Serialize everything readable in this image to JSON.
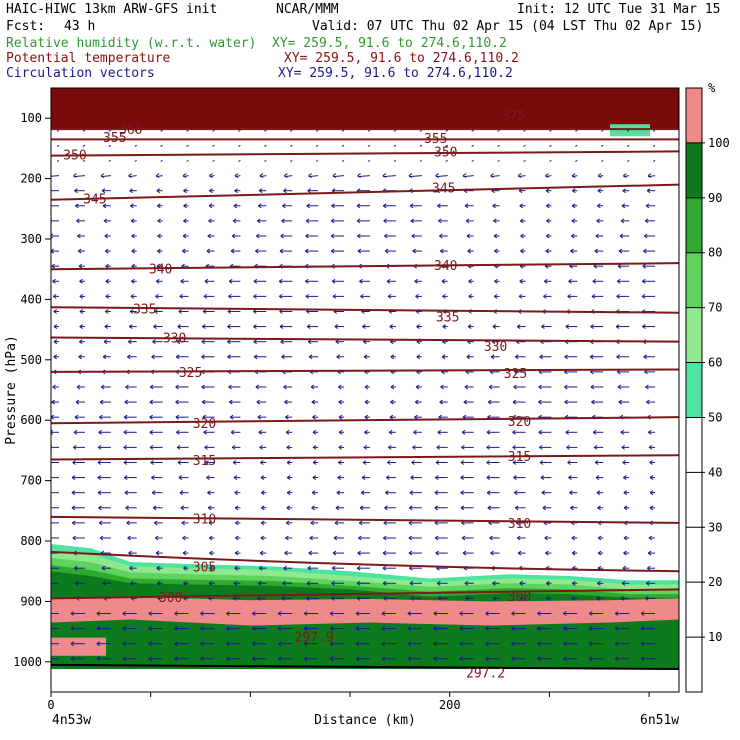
{
  "header": {
    "model": "HAIC-HIWC 13km ARW-GFS init",
    "org": "NCAR/MMM",
    "init": "Init: 12 UTC Tue 31 Mar 15",
    "fcst_label": "Fcst:",
    "fcst_value": "43 h",
    "valid": "Valid: 07 UTC Thu 02 Apr 15 (04 LST Thu 02 Apr 15)",
    "fields": [
      {
        "name": "Relative humidity (w.r.t. water)",
        "xy": "XY= 259.5, 91.6 to 274.6,110.2",
        "color": "#2f9a2f"
      },
      {
        "name": "Potential temperature",
        "xy": "XY= 259.5, 91.6 to 274.6,110.2",
        "color": "#8b1010"
      },
      {
        "name": "Circulation vectors",
        "xy": "XY= 259.5, 91.6 to 274.6,110.2",
        "color": "#1a1a8c"
      }
    ]
  },
  "chart_data": {
    "type": "cross-section",
    "ylabel": "Pressure (hPa)",
    "xlabel": "Distance (km)",
    "y_ticks": [
      100,
      200,
      300,
      400,
      500,
      600,
      700,
      800,
      900,
      1000
    ],
    "ylim": [
      1050,
      50
    ],
    "x_ticks": [
      0,
      200
    ],
    "xlim": [
      0,
      315
    ],
    "left_end_label": "4n53w",
    "right_end_label": "6n51w",
    "colorbar": {
      "unit": "%",
      "levels": [
        10,
        20,
        30,
        40,
        50,
        60,
        70,
        80,
        90,
        100
      ],
      "bands": [
        {
          "from": 50,
          "to": 60,
          "color": "#4fe3a0"
        },
        {
          "from": 60,
          "to": 70,
          "color": "#8ee88e"
        },
        {
          "from": 70,
          "to": 80,
          "color": "#5ed35e"
        },
        {
          "from": 80,
          "to": 90,
          "color": "#2eaa2e"
        },
        {
          "from": 90,
          "to": 100,
          "color": "#0e7a1e"
        },
        {
          "from": 100,
          "to": 110,
          "color": "#f08a8a"
        }
      ]
    },
    "theta_contours": [
      {
        "value": "360",
        "p": [
          118,
          118
        ],
        "labels": [
          [
            40,
            118
          ]
        ]
      },
      {
        "value": "355",
        "p": [
          135,
          135
        ],
        "labels": [
          [
            32,
            131
          ],
          [
            193,
            133
          ]
        ]
      },
      {
        "value": "350",
        "p": [
          162,
          155
        ],
        "labels": [
          [
            12,
            160
          ],
          [
            198,
            155
          ]
        ]
      },
      {
        "value": "345",
        "p": [
          235,
          210
        ],
        "labels": [
          [
            22,
            233
          ],
          [
            197,
            215
          ]
        ]
      },
      {
        "value": "340",
        "p": [
          350,
          340
        ],
        "labels": [
          [
            55,
            349
          ],
          [
            198,
            343
          ]
        ]
      },
      {
        "value": "335",
        "p": [
          413,
          422
        ],
        "labels": [
          [
            47,
            415
          ],
          [
            199,
            428
          ]
        ]
      },
      {
        "value": "330",
        "p": [
          463,
          470
        ],
        "labels": [
          [
            62,
            463
          ],
          [
            223,
            477
          ]
        ]
      },
      {
        "value": "325",
        "p": [
          520,
          516
        ],
        "labels": [
          [
            70,
            520
          ],
          [
            233,
            522
          ]
        ]
      },
      {
        "value": "320",
        "p": [
          605,
          595
        ],
        "labels": [
          [
            77,
            605
          ],
          [
            235,
            601
          ]
        ]
      },
      {
        "value": "315",
        "p": [
          665,
          658
        ],
        "labels": [
          [
            77,
            666
          ],
          [
            235,
            659
          ]
        ]
      },
      {
        "value": "310",
        "p": [
          760,
          770
        ],
        "labels": [
          [
            77,
            763
          ],
          [
            235,
            770
          ]
        ]
      },
      {
        "value": "305",
        "p": [
          818,
          850
        ],
        "labels": [
          [
            77,
            842
          ]
        ]
      },
      {
        "value": "300",
        "p": [
          895,
          880
        ],
        "labels": [
          [
            60,
            893
          ],
          [
            235,
            891
          ]
        ]
      },
      {
        "value": "297.9",
        "p": [],
        "labels": [
          [
            132,
            958
          ]
        ]
      },
      {
        "value": "297.2",
        "p": [],
        "labels": [
          [
            218,
            1018
          ]
        ]
      },
      {
        "value": "375",
        "p": [],
        "labels": [
          [
            232,
            95
          ]
        ]
      }
    ]
  }
}
